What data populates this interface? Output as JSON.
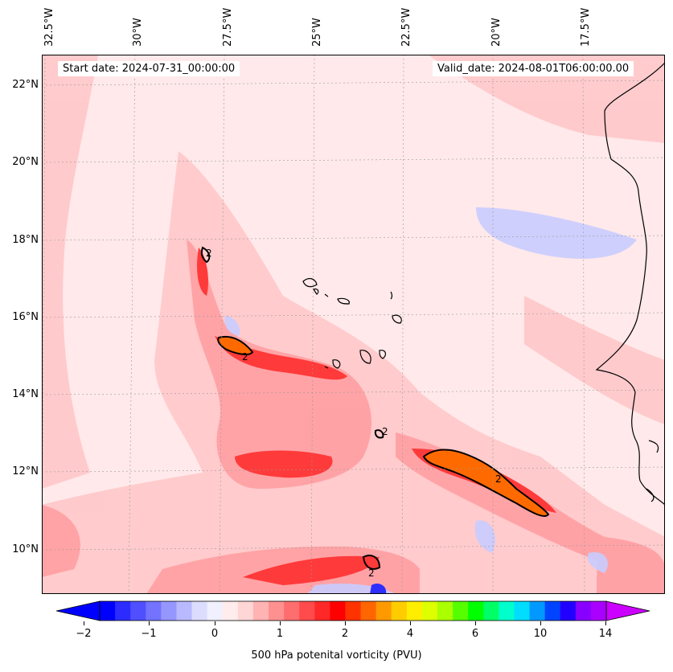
{
  "header": {
    "start_date": "Start date: 2024-07-31_00:00:00",
    "valid_date": "Valid_date: 2024-08-01T06:00:00.00"
  },
  "axes": {
    "longitude_labels": [
      "32.5°W",
      "30°W",
      "27.5°W",
      "25°W",
      "22.5°W",
      "20°W",
      "17.5°W"
    ],
    "latitude_labels": [
      "22°N",
      "20°N",
      "18°N",
      "16°N",
      "14°N",
      "12°N",
      "10°N"
    ]
  },
  "map": {
    "contour_label": "2",
    "colors": {
      "background": "#ffe9ea",
      "light_red": "#ffc9cb",
      "red": "#ff8a8e",
      "deep_red": "#ff3a3a",
      "orange": "#ff6a00",
      "blue": "#c9ccff",
      "deep_blue": "#2e2eff",
      "contour": "#000000",
      "coast": "#000000"
    }
  },
  "colorbar": {
    "tick_labels": [
      "−2",
      "−1",
      "0",
      "1",
      "2",
      "4",
      "6",
      "10",
      "14"
    ],
    "label": "500 hPa potenital vorticity (PVU)",
    "colors": [
      "#0000ff",
      "#2c2cff",
      "#4f4fff",
      "#7373ff",
      "#9696ff",
      "#b9b9ff",
      "#dcdcff",
      "#f0f0ff",
      "#ffecec",
      "#ffd6d6",
      "#ffb3b3",
      "#ff9090",
      "#ff6e6e",
      "#ff4b4b",
      "#ff2828",
      "#ff0000",
      "#ff3300",
      "#ff6600",
      "#ff9900",
      "#ffcc00",
      "#ffee00",
      "#ddff00",
      "#aaff00",
      "#55ff00",
      "#00ff00",
      "#00ff66",
      "#00ffcc",
      "#00ddff",
      "#0099ff",
      "#0044ff",
      "#2200ff",
      "#8800ff",
      "#aa00ff"
    ]
  }
}
